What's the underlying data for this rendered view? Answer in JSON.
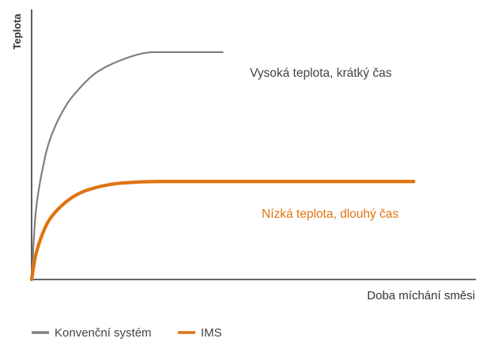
{
  "chart_data": {
    "type": "line",
    "xlabel": "Doba míchání směsi",
    "ylabel": "Teplota",
    "xlim": [
      0,
      100
    ],
    "ylim": [
      0,
      100
    ],
    "grid": false,
    "legend_position": "bottom-left",
    "series": [
      {
        "name": "Konvenční systém",
        "color": "#808080",
        "x": [
          0,
          1,
          3,
          5,
          8,
          11,
          14,
          17,
          20,
          23,
          26,
          29,
          43
        ],
        "y": [
          0,
          30,
          52,
          64,
          75,
          82,
          87.5,
          91,
          93.5,
          95.5,
          96.8,
          97,
          97
        ],
        "annotation": "Vysoká teplota, krátký čas"
      },
      {
        "name": "IMS",
        "color": "#e0730f",
        "x": [
          0,
          1,
          3,
          5,
          8,
          11,
          14,
          17,
          20,
          24,
          28,
          35,
          50,
          70,
          86
        ],
        "y": [
          0,
          11,
          22,
          28,
          33.5,
          37,
          39,
          40.3,
          41.1,
          41.6,
          41.8,
          41.8,
          41.8,
          41.8,
          41.8
        ],
        "annotation": "Nízká teplota, dlouhý čas"
      }
    ]
  }
}
